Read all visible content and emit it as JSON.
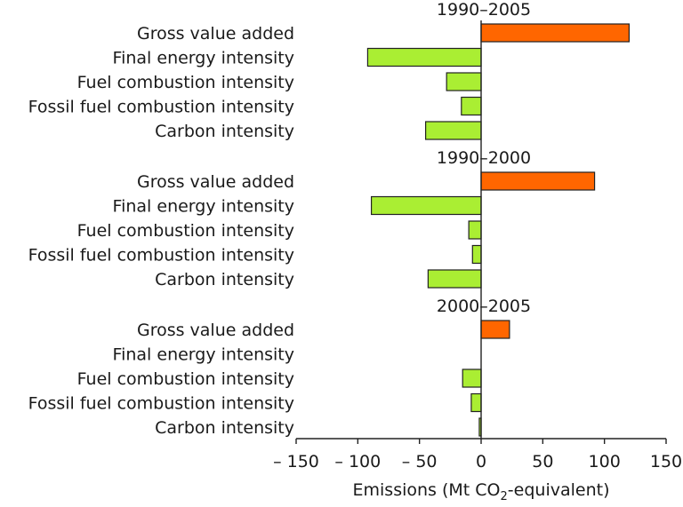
{
  "chart_data": {
    "type": "bar",
    "orientation": "horizontal",
    "xlim": [
      -150,
      150
    ],
    "xticks": [
      -150,
      -100,
      -50,
      0,
      50,
      100,
      150
    ],
    "xtick_labels": [
      "– 150",
      "– 100",
      "– 50",
      "0",
      "50",
      "100",
      "150"
    ],
    "xlabel_prefix": "Emissions (Mt CO",
    "xlabel_sub": "2",
    "xlabel_suffix": "-equivalent)",
    "grid": false,
    "colors": {
      "positive": "#ff6600",
      "negative": "#aaee33"
    },
    "panels": [
      {
        "title": "1990–2005",
        "categories": [
          "Gross value added",
          "Final energy intensity",
          "Fuel combustion intensity",
          "Fossil fuel combustion intensity",
          "Carbon intensity"
        ],
        "values": [
          120,
          -92,
          -28,
          -16,
          -45
        ]
      },
      {
        "title": "1990–2000",
        "categories": [
          "Gross value added",
          "Final energy intensity",
          "Fuel combustion intensity",
          "Fossil fuel combustion intensity",
          "Carbon intensity"
        ],
        "values": [
          92,
          -89,
          -10,
          -7,
          -43
        ]
      },
      {
        "title": "2000–2005",
        "categories": [
          "Gross value added",
          "Final energy intensity",
          "Fuel combustion intensity",
          "Fossil fuel combustion intensity",
          "Carbon intensity"
        ],
        "values": [
          23,
          0,
          -15,
          -8,
          -1.5
        ]
      }
    ]
  }
}
